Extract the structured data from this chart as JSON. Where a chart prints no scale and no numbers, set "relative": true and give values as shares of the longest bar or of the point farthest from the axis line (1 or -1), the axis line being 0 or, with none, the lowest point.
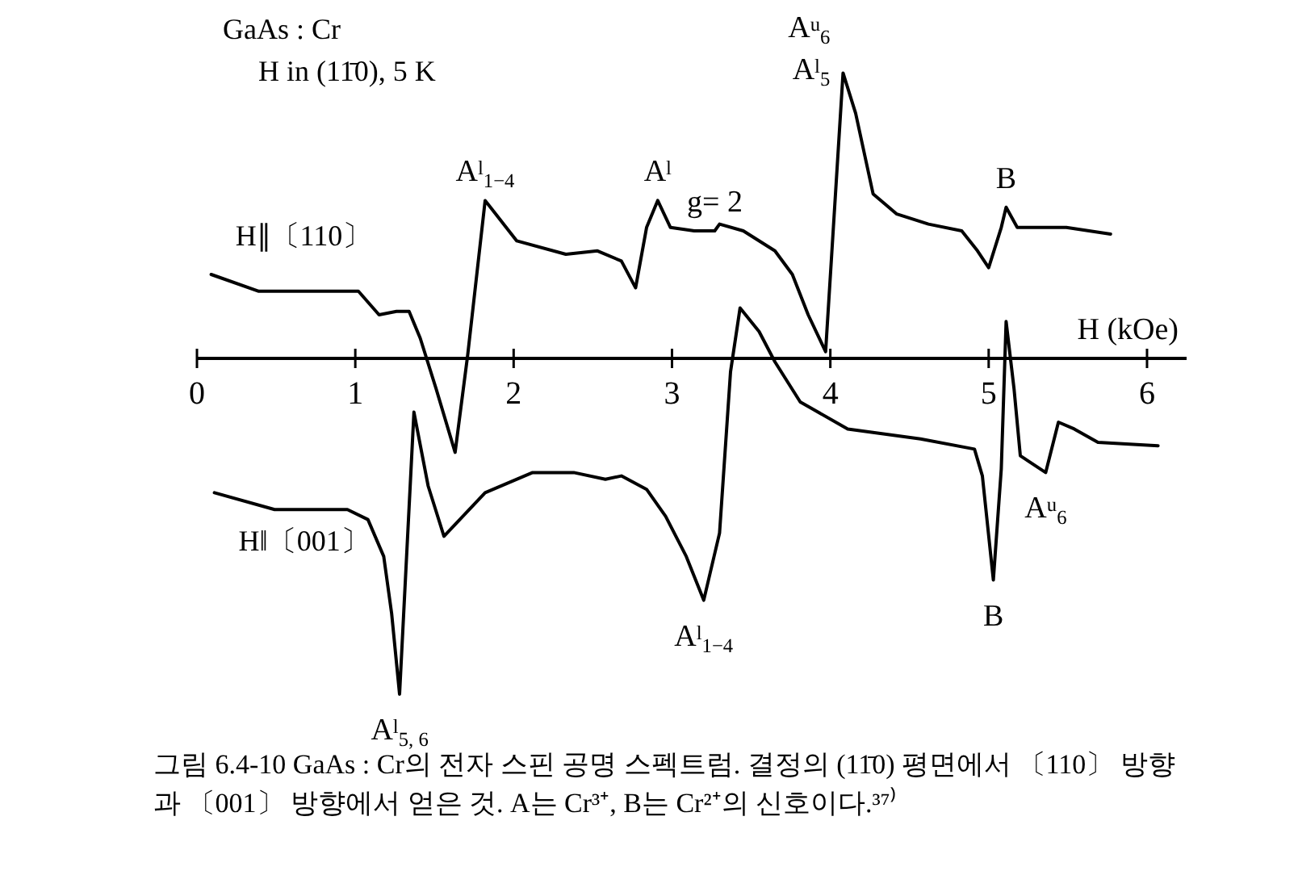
{
  "chart_data": {
    "type": "line",
    "relative": true,
    "title": "GaAs : Cr",
    "subtitle": "H in (11̄0), 5 K",
    "xlabel": "H (kOe)",
    "xlim": [
      0,
      6.25
    ],
    "xticks": [
      0,
      1,
      2,
      3,
      4,
      5,
      6
    ],
    "line_style": "solid",
    "series": [
      {
        "name": "H∥〔110〕",
        "color": "#000000",
        "x": [
          0.09,
          0.39,
          1.02,
          1.15,
          1.26,
          1.34,
          1.41,
          1.51,
          1.63,
          1.71,
          1.82,
          2.02,
          2.33,
          2.53,
          2.68,
          2.77,
          2.84,
          2.91,
          2.99,
          3.14,
          3.27,
          3.3,
          3.45,
          3.65,
          3.76,
          3.86,
          3.97,
          4.08,
          4.16,
          4.27,
          4.42,
          4.62,
          4.83,
          4.93,
          5.0,
          5.08,
          5.11,
          5.18,
          5.49,
          5.77
        ],
        "values": [
          0.25,
          0.2,
          0.2,
          0.13,
          0.14,
          0.14,
          0.06,
          -0.09,
          -0.28,
          0.01,
          0.47,
          0.35,
          0.31,
          0.32,
          0.29,
          0.21,
          0.39,
          0.47,
          0.39,
          0.38,
          0.38,
          0.4,
          0.38,
          0.32,
          0.25,
          0.13,
          0.02,
          0.85,
          0.73,
          0.49,
          0.43,
          0.4,
          0.38,
          0.32,
          0.27,
          0.39,
          0.45,
          0.39,
          0.39,
          0.37
        ]
      },
      {
        "name": "H‖〔001〕",
        "color": "#000000",
        "x": [
          0.11,
          0.49,
          0.95,
          1.08,
          1.18,
          1.23,
          1.28,
          1.37,
          1.46,
          1.56,
          1.82,
          2.12,
          2.38,
          2.58,
          2.68,
          2.84,
          2.96,
          3.09,
          3.2,
          3.3,
          3.37,
          3.43,
          3.55,
          3.65,
          3.81,
          4.11,
          4.57,
          4.91,
          4.96,
          5.03,
          5.08,
          5.11,
          5.16,
          5.2,
          5.36,
          5.44,
          5.54,
          5.69,
          6.07
        ],
        "values": [
          -0.4,
          -0.45,
          -0.45,
          -0.48,
          -0.59,
          -0.76,
          -1.0,
          -0.16,
          -0.38,
          -0.53,
          -0.4,
          -0.34,
          -0.34,
          -0.36,
          -0.35,
          -0.39,
          -0.47,
          -0.59,
          -0.72,
          -0.52,
          -0.04,
          0.15,
          0.08,
          -0.01,
          -0.13,
          -0.21,
          -0.24,
          -0.27,
          -0.35,
          -0.66,
          -0.33,
          0.11,
          -0.09,
          -0.29,
          -0.34,
          -0.19,
          -0.21,
          -0.25,
          -0.26
        ]
      }
    ],
    "annotations": [
      {
        "text": "A$^{l}$$_{1−4}$",
        "x": 1.82,
        "y": 0.47
      },
      {
        "text": "A$^{l}$",
        "x": 2.91,
        "y": 0.47
      },
      {
        "text": "g= 2",
        "x": 3.27,
        "y": 0.38
      },
      {
        "text": "A$^{u}$$_{6}$",
        "x": 4.08,
        "y": 0.85
      },
      {
        "text": "A$^{l}$$_{5}$",
        "x": 4.08,
        "y": 0.85
      },
      {
        "text": "B",
        "x": 5.11,
        "y": 0.45
      },
      {
        "text": "A$^{l}$$_{5, 6}$",
        "x": 1.28,
        "y": -1.0
      },
      {
        "text": "A$^{l}$$_{1−4}$",
        "x": 3.2,
        "y": -0.72
      },
      {
        "text": "B",
        "x": 5.03,
        "y": -0.66
      },
      {
        "text": "A$^{u}$$_{6}$",
        "x": 5.36,
        "y": -0.34
      },
      "그림 6.4-10  GaAs : Cr의 전자 스핀 공명 스펙트럼. 결정의 (11̄0) 평면에서 〔110〕 방향과 〔001〕 방향에서 얻은 것. A는 Cr³⁺, B는 Cr²⁺의 신호이다.³⁷⁾"
    ]
  }
}
